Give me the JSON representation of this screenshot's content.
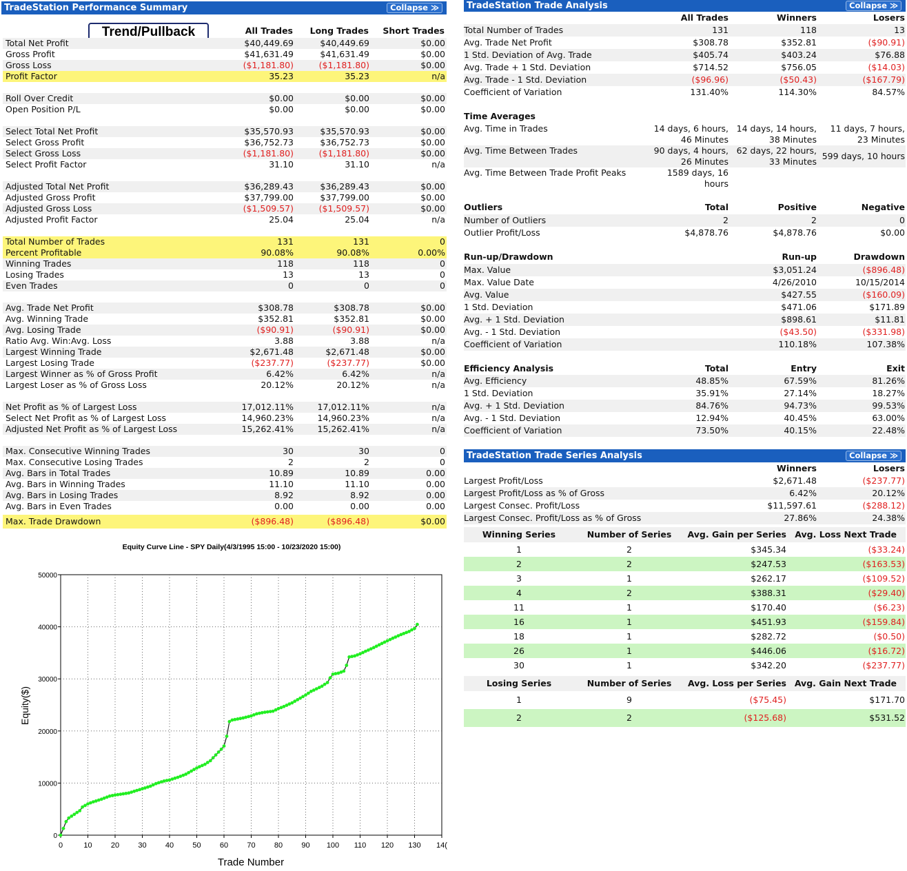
{
  "perf": {
    "header": "TradeStation Performance Summary",
    "collapse": "Collapse ≫",
    "strategy": "Trend/Pullback",
    "columns": [
      "All Trades",
      "Long Trades",
      "Short Trades"
    ],
    "groups": [
      {
        "top": 53,
        "rows": [
          {
            "label": "Total Net Profit",
            "v": [
              "$40,449.69",
              "$40,449.69",
              "$0.00"
            ]
          },
          {
            "label": "Gross Profit",
            "v": [
              "$41,631.49",
              "$41,631.49",
              "$0.00"
            ]
          },
          {
            "label": "Gross Loss",
            "v": [
              "($1,181.80)",
              "($1,181.80)",
              "$0.00"
            ]
          },
          {
            "label": "Profit Factor",
            "v": [
              "35.23",
              "35.23",
              "n/a"
            ],
            "hl": true
          }
        ]
      },
      {
        "top": 133,
        "rows": [
          {
            "label": "Roll Over Credit",
            "v": [
              "$0.00",
              "$0.00",
              "$0.00"
            ]
          },
          {
            "label": "Open Position P/L",
            "v": [
              "$0.00",
              "$0.00",
              "$0.00"
            ]
          }
        ]
      },
      {
        "top": 181,
        "rows": [
          {
            "label": "Select Total Net Profit",
            "v": [
              "$35,570.93",
              "$35,570.93",
              "$0.00"
            ]
          },
          {
            "label": "Select Gross Profit",
            "v": [
              "$36,752.73",
              "$36,752.73",
              "$0.00"
            ]
          },
          {
            "label": "Select Gross Loss",
            "v": [
              "($1,181.80)",
              "($1,181.80)",
              "$0.00"
            ]
          },
          {
            "label": "Select Profit Factor",
            "v": [
              "31.10",
              "31.10",
              "n/a"
            ]
          }
        ]
      },
      {
        "top": 261,
        "rows": [
          {
            "label": "Adjusted Total Net Profit",
            "v": [
              "$36,289.43",
              "$36,289.43",
              "$0.00"
            ]
          },
          {
            "label": "Adjusted Gross Profit",
            "v": [
              "$37,799.00",
              "$37,799.00",
              "$0.00"
            ]
          },
          {
            "label": "Adjusted Gross Loss",
            "v": [
              "($1,509.57)",
              "($1,509.57)",
              "$0.00"
            ]
          },
          {
            "label": "Adjusted Profit Factor",
            "v": [
              "25.04",
              "25.04",
              "n/a"
            ]
          }
        ]
      },
      {
        "top": 341,
        "rows": [
          {
            "label": "Total Number of Trades",
            "v": [
              "131",
              "131",
              "0"
            ],
            "hl": true
          },
          {
            "label": "Percent Profitable",
            "v": [
              "90.08%",
              "90.08%",
              "0.00%"
            ],
            "hl": true
          },
          {
            "label": "Winning Trades",
            "v": [
              "118",
              "118",
              "0"
            ]
          },
          {
            "label": "Losing Trades",
            "v": [
              "13",
              "13",
              "0"
            ]
          },
          {
            "label": "Even Trades",
            "v": [
              "0",
              "0",
              "0"
            ]
          }
        ]
      },
      {
        "top": 437,
        "rows": [
          {
            "label": "Avg. Trade Net Profit",
            "v": [
              "$308.78",
              "$308.78",
              "$0.00"
            ]
          },
          {
            "label": "Avg. Winning Trade",
            "v": [
              "$352.81",
              "$352.81",
              "$0.00"
            ]
          },
          {
            "label": "Avg. Losing Trade",
            "v": [
              "($90.91)",
              "($90.91)",
              "$0.00"
            ]
          },
          {
            "label": "Ratio Avg. Win:Avg. Loss",
            "v": [
              "3.88",
              "3.88",
              "n/a"
            ]
          },
          {
            "label": "Largest Winning Trade",
            "v": [
              "$2,671.48",
              "$2,671.48",
              "$0.00"
            ]
          },
          {
            "label": "Largest Losing Trade",
            "v": [
              "($237.77)",
              "($237.77)",
              "$0.00"
            ]
          },
          {
            "label": "Largest Winner as % of Gross Profit",
            "v": [
              "6.42%",
              "6.42%",
              "n/a"
            ]
          },
          {
            "label": "Largest Loser as % of Gross Loss",
            "v": [
              "20.12%",
              "20.12%",
              "n/a"
            ]
          }
        ]
      },
      {
        "top": 581,
        "rows": [
          {
            "label": "Net Profit as % of Largest Loss",
            "v": [
              "17,012.11%",
              "17,012.11%",
              "n/a"
            ]
          },
          {
            "label": "Select Net Profit as % of Largest Loss",
            "v": [
              "14,960.23%",
              "14,960.23%",
              "n/a"
            ]
          },
          {
            "label": "Adjusted Net Profit as % of Largest Loss",
            "v": [
              "15,262.41%",
              "15,262.41%",
              "n/a"
            ]
          }
        ]
      },
      {
        "top": 645,
        "rows": [
          {
            "label": "Max. Consecutive Winning Trades",
            "v": [
              "30",
              "30",
              "0"
            ]
          },
          {
            "label": "Max. Consecutive Losing Trades",
            "v": [
              "2",
              "2",
              "0"
            ]
          },
          {
            "label": "Avg. Bars in Total Trades",
            "v": [
              "10.89",
              "10.89",
              "0.00"
            ]
          },
          {
            "label": "Avg. Bars in Winning Trades",
            "v": [
              "11.10",
              "11.10",
              "0.00"
            ]
          },
          {
            "label": "Avg. Bars in Losing Trades",
            "v": [
              "8.92",
              "8.92",
              "0.00"
            ]
          },
          {
            "label": "Avg. Bars in Even Trades",
            "v": [
              "0.00",
              "0.00",
              "0.00"
            ]
          }
        ]
      }
    ],
    "max_dd": {
      "label": "Max. Trade Drawdown",
      "v": [
        "($896.48)",
        "($896.48)",
        "$0.00"
      ]
    }
  },
  "analysis": {
    "header": "TradeStation Trade Analysis",
    "collapse": "Collapse ≫",
    "columns": [
      "All Trades",
      "Winners",
      "Losers"
    ],
    "rows": [
      {
        "label": "Total Number of Trades",
        "v": [
          "131",
          "118",
          "13"
        ]
      },
      {
        "label": "Avg. Trade Net Profit",
        "v": [
          "$308.78",
          "$352.81",
          "($90.91)"
        ]
      },
      {
        "label": "1 Std. Deviation of Avg. Trade",
        "v": [
          "$405.74",
          "$403.24",
          "$76.88"
        ]
      },
      {
        "label": "Avg. Trade + 1 Std. Deviation",
        "v": [
          "$714.52",
          "$756.05",
          "($14.03)"
        ]
      },
      {
        "label": "Avg. Trade - 1 Std. Deviation",
        "v": [
          "($96.96)",
          "($50.43)",
          "($167.79)"
        ]
      },
      {
        "label": "Coefficient of Variation",
        "v": [
          "131.40%",
          "114.30%",
          "84.57%"
        ]
      }
    ],
    "time_title": "Time Averages",
    "time_rows": [
      {
        "label": "Avg. Time in Trades",
        "v": [
          [
            "14 days, 6 hours,",
            "46 Minutes"
          ],
          [
            "14 days, 14 hours,",
            "38 Minutes"
          ],
          [
            "11 days, 7 hours,",
            "23 Minutes"
          ]
        ]
      },
      {
        "label": "Avg. Time Between Trades",
        "v": [
          [
            "90 days, 4 hours,",
            "26 Minutes"
          ],
          [
            "62 days, 22 hours,",
            "33 Minutes"
          ],
          [
            "599 days, 10 hours"
          ]
        ]
      },
      {
        "label": "Avg. Time Between Trade Profit Peaks",
        "v": [
          [
            "1589 days, 16",
            "hours"
          ],
          [],
          []
        ]
      }
    ],
    "outliers": {
      "title": "Outliers",
      "cols": [
        "Total",
        "Positive",
        "Negative"
      ],
      "rows": [
        {
          "label": "Number of Outliers",
          "v": [
            "2",
            "2",
            "0"
          ]
        },
        {
          "label": "Outlier Profit/Loss",
          "v": [
            "$4,878.76",
            "$4,878.76",
            "$0.00"
          ]
        }
      ]
    },
    "runup": {
      "title": "Run-up/Drawdown",
      "cols": [
        "Run-up",
        "Drawdown"
      ],
      "rows": [
        {
          "label": "Max. Value",
          "v": [
            "$3,051.24",
            "($896.48)"
          ]
        },
        {
          "label": "Max. Value Date",
          "v": [
            "4/26/2010",
            "10/15/2014"
          ]
        },
        {
          "label": "Avg. Value",
          "v": [
            "$427.55",
            "($160.09)"
          ]
        },
        {
          "label": "1 Std. Deviation",
          "v": [
            "$471.06",
            "$171.89"
          ]
        },
        {
          "label": "Avg. + 1 Std. Deviation",
          "v": [
            "$898.61",
            "$11.81"
          ]
        },
        {
          "label": "Avg. - 1 Std. Deviation",
          "v": [
            "($43.50)",
            "($331.98)"
          ]
        },
        {
          "label": "Coefficient of Variation",
          "v": [
            "110.18%",
            "107.38%"
          ]
        }
      ]
    },
    "efficiency": {
      "title": "Efficiency Analysis",
      "cols": [
        "Total",
        "Entry",
        "Exit"
      ],
      "rows": [
        {
          "label": "Avg. Efficiency",
          "v": [
            "48.85%",
            "67.59%",
            "81.26%"
          ]
        },
        {
          "label": "1 Std. Deviation",
          "v": [
            "35.91%",
            "27.14%",
            "18.27%"
          ]
        },
        {
          "label": "Avg. + 1 Std. Deviation",
          "v": [
            "84.76%",
            "94.73%",
            "99.53%"
          ]
        },
        {
          "label": "Avg. - 1 Std. Deviation",
          "v": [
            "12.94%",
            "40.45%",
            "63.00%"
          ]
        },
        {
          "label": "Coefficient of Variation",
          "v": [
            "73.50%",
            "40.15%",
            "22.48%"
          ]
        }
      ]
    }
  },
  "series": {
    "header": "TradeStation Trade Series Analysis",
    "collapse": "Collapse ≫",
    "cols": [
      "Winners",
      "Losers"
    ],
    "rows": [
      {
        "label": "Largest Profit/Loss",
        "v": [
          "$2,671.48",
          "($237.77)"
        ]
      },
      {
        "label": "Largest Profit/Loss as % of Gross",
        "v": [
          "6.42%",
          "20.12%"
        ]
      },
      {
        "label": "Largest Consec. Profit/Loss",
        "v": [
          "$11,597.61",
          "($288.12)"
        ]
      },
      {
        "label": "Largest Consec. Profit/Loss as % of Gross",
        "v": [
          "27.86%",
          "24.38%"
        ]
      }
    ],
    "win_cols": [
      "Winning Series",
      "Number of Series",
      "Avg. Gain per Series",
      "Avg. Loss Next Trade"
    ],
    "win_rows": [
      [
        "1",
        "2",
        "$345.34",
        "($33.24)"
      ],
      [
        "2",
        "2",
        "$247.53",
        "($163.53)"
      ],
      [
        "3",
        "1",
        "$262.17",
        "($109.52)"
      ],
      [
        "4",
        "2",
        "$388.31",
        "($29.40)"
      ],
      [
        "11",
        "1",
        "$170.40",
        "($6.23)"
      ],
      [
        "16",
        "1",
        "$451.93",
        "($159.84)"
      ],
      [
        "18",
        "1",
        "$282.72",
        "($0.50)"
      ],
      [
        "26",
        "1",
        "$446.06",
        "($16.72)"
      ],
      [
        "30",
        "1",
        "$342.20",
        "($237.77)"
      ]
    ],
    "lose_cols": [
      "Losing Series",
      "Number of Series",
      "Avg. Loss per Series",
      "Avg. Gain Next Trade"
    ],
    "lose_rows": [
      [
        "1",
        "9",
        "($75.45)",
        "$171.70"
      ],
      [
        "2",
        "2",
        "($125.68)",
        "$531.52"
      ]
    ]
  },
  "chart_data": {
    "type": "scatter",
    "title": "Equity Curve Line - SPY Daily(4/3/1995 15:00 - 10/23/2020 15:00)",
    "xlabel": "Trade Number",
    "ylabel": "Equity($)",
    "xlim": [
      0,
      140
    ],
    "ylim": [
      0,
      50000
    ],
    "xticks": [
      "0",
      "10",
      "20",
      "30",
      "40",
      "50",
      "60",
      "70",
      "80",
      "90",
      "100",
      "110",
      "120",
      "130",
      "14("
    ],
    "yticks": [
      "0",
      "10000",
      "20000",
      "30000",
      "40000",
      "50000"
    ],
    "grid": true,
    "color": "#22ee22",
    "x": [
      0,
      1,
      2,
      3,
      5,
      7,
      8,
      10,
      12,
      15,
      18,
      20,
      25,
      30,
      33,
      35,
      38,
      40,
      43,
      46,
      48,
      50,
      53,
      55,
      57,
      59,
      60,
      61,
      62,
      63,
      65,
      67,
      70,
      72,
      75,
      78,
      80,
      82,
      85,
      88,
      90,
      92,
      94,
      96,
      98,
      99,
      100,
      102,
      104,
      105,
      106,
      108,
      110,
      112,
      115,
      118,
      120,
      122,
      125,
      128,
      130,
      131
    ],
    "y": [
      0,
      1300,
      2600,
      3300,
      4000,
      4700,
      5400,
      6000,
      6400,
      6900,
      7500,
      7700,
      8100,
      8900,
      9400,
      9900,
      10400,
      10600,
      11100,
      11700,
      12300,
      12900,
      13600,
      14300,
      15400,
      16500,
      17100,
      19000,
      21800,
      22100,
      22300,
      22500,
      22900,
      23300,
      23600,
      23800,
      24300,
      24700,
      25400,
      26300,
      26900,
      27600,
      28100,
      28600,
      29300,
      30200,
      30900,
      31100,
      31500,
      32600,
      34200,
      34400,
      34800,
      35300,
      36000,
      36800,
      37300,
      37800,
      38500,
      39100,
      39700,
      40450
    ]
  }
}
